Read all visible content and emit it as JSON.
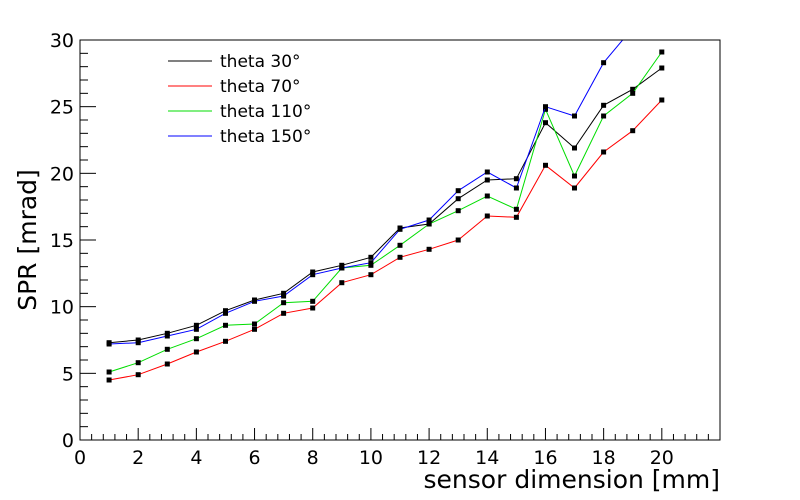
{
  "chart_data": {
    "type": "line",
    "xlabel": "sensor dimension [mm]",
    "ylabel": "SPR [mrad]",
    "xlim": [
      0,
      22
    ],
    "ylim": [
      0,
      30
    ],
    "x_ticks": [
      "0",
      "2",
      "4",
      "6",
      "8",
      "10",
      "12",
      "14",
      "16",
      "18",
      "20"
    ],
    "y_ticks": [
      "0",
      "5",
      "10",
      "15",
      "20",
      "25",
      "30"
    ],
    "grid": false,
    "legend_position": "top-left",
    "marker": "filled-square",
    "marker_color": "#000000",
    "x": [
      1,
      2,
      3,
      4,
      5,
      6,
      7,
      8,
      9,
      10,
      11,
      12,
      13,
      14,
      15,
      16,
      17,
      18,
      19,
      20
    ],
    "series": [
      {
        "name": "theta 30°",
        "color": "#000000",
        "values": [
          7.3,
          7.5,
          8.0,
          8.6,
          9.7,
          10.5,
          11.0,
          12.6,
          13.1,
          13.7,
          15.9,
          16.2,
          18.1,
          19.5,
          19.6,
          23.8,
          21.9,
          25.1,
          26.3,
          27.9
        ]
      },
      {
        "name": "theta 70°",
        "color": "#ff0000",
        "values": [
          4.5,
          4.9,
          5.7,
          6.6,
          7.4,
          8.3,
          9.5,
          9.9,
          11.8,
          12.4,
          13.7,
          14.3,
          15.0,
          16.8,
          16.7,
          20.6,
          18.9,
          21.6,
          23.2,
          25.5
        ]
      },
      {
        "name": "theta 110°",
        "color": "#00dd00",
        "values": [
          5.1,
          5.8,
          6.8,
          7.6,
          8.6,
          8.7,
          10.3,
          10.4,
          12.9,
          13.1,
          14.6,
          16.2,
          17.2,
          18.3,
          17.3,
          24.8,
          19.8,
          24.3,
          26.0,
          29.1
        ]
      },
      {
        "name": "theta 150°",
        "color": "#0000ff",
        "values": [
          7.2,
          7.3,
          7.8,
          8.3,
          9.5,
          10.4,
          10.8,
          12.4,
          12.9,
          13.3,
          15.8,
          16.5,
          18.7,
          20.1,
          18.9,
          25.0,
          24.3,
          28.3,
          30.9,
          null
        ]
      }
    ]
  }
}
